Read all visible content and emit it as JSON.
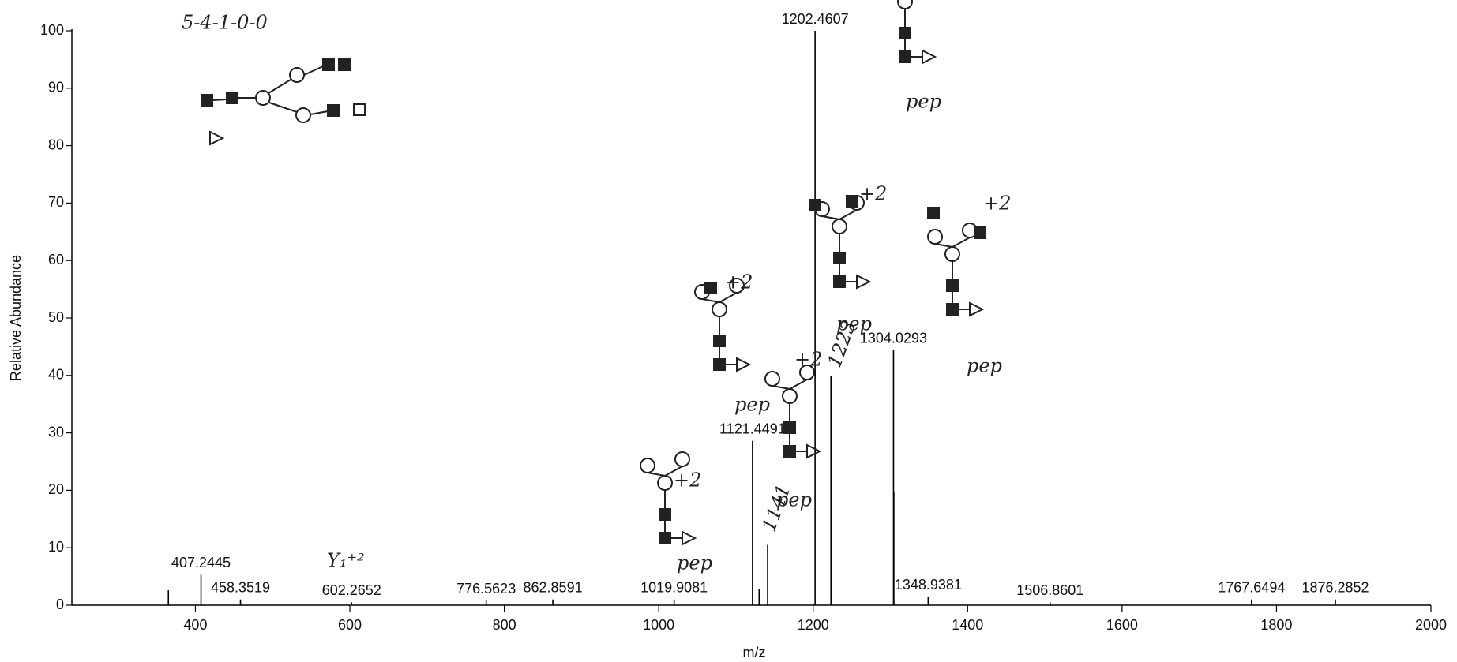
{
  "chart_data": {
    "type": "spectrum",
    "x_label": "m/z",
    "y_label": "Relative Abundance",
    "xlim": [
      240,
      2000
    ],
    "xticks": [
      400,
      600,
      800,
      1000,
      1200,
      1400,
      1600,
      1800,
      2000
    ],
    "ylim": [
      0,
      100
    ],
    "yticks": [
      0,
      10,
      20,
      30,
      40,
      50,
      60,
      70,
      80,
      90,
      100
    ],
    "color": "#000000",
    "x": [
      365,
      407.2445,
      458.3519,
      602.2652,
      776.5623,
      862.8591,
      1019.9081,
      1121.4491,
      1130,
      1141,
      1202.4607,
      1223,
      1223.5,
      1304.0293,
      1304.5,
      1348.9381,
      1506.8601,
      1767.6494,
      1876.2852
    ],
    "values": [
      2.6,
      5.3,
      1,
      0.5,
      0.8,
      1,
      1,
      28.6,
      2.8,
      10.5,
      100,
      39.9,
      14.8,
      44.4,
      19.7,
      1.5,
      0.5,
      1,
      1
    ],
    "peak_labels": [
      null,
      "407.2445",
      "458.3519",
      "602.2652",
      "776.5623",
      "862.8591",
      "1019.9081",
      "1121.4491",
      null,
      null,
      "1202.4607",
      null,
      null,
      "1304.0293",
      null,
      "1348.9381",
      "1506.8601",
      "1767.6494",
      "1876.2852"
    ],
    "annotations": [
      "5-4-1-0-0",
      "Y₁⁺²",
      "+2",
      "+2",
      "+2",
      "+2",
      "+2",
      "pep",
      "pep",
      "pep",
      "pep",
      "pep",
      "pep",
      "1223",
      "1141"
    ]
  }
}
